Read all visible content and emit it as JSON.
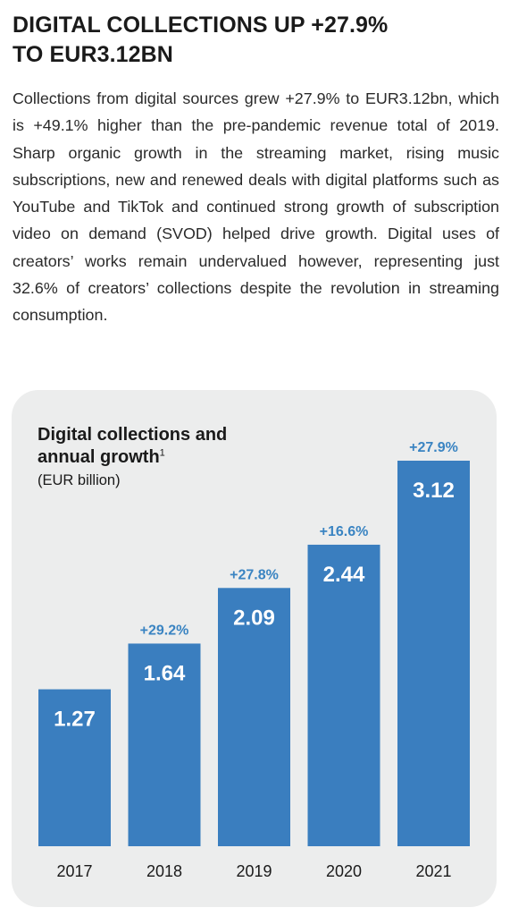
{
  "article": {
    "headline_line1": "DIGITAL COLLECTIONS UP +27.9%",
    "headline_line2": "TO EUR3.12BN",
    "body": "Collections from digital sources grew +27.9% to EUR3.12bn, which is +49.1% higher than the pre-pandemic revenue total of 2019. Sharp organic growth in the streaming market, rising music subscriptions, new and renewed deals with digital platforms such as YouTube and TikTok and continued strong growth of subscription video on demand (SVOD) helped drive growth. Digital uses of creators’ works remain undervalued however, representing just 32.6% of creators’ collections despite the revolution in streaming consumption."
  },
  "chart_data": {
    "type": "bar",
    "title_line1": "Digital collections and",
    "title_line2": "annual growth",
    "title_footnote": "1",
    "unit": "(EUR billion)",
    "categories": [
      "2017",
      "2018",
      "2019",
      "2020",
      "2021"
    ],
    "values": [
      1.27,
      1.64,
      2.09,
      2.44,
      3.12
    ],
    "value_labels": [
      "1.27",
      "1.64",
      "2.09",
      "2.44",
      "3.12"
    ],
    "growth_labels": [
      "",
      "+29.2%",
      "+27.8%",
      "+16.6%",
      "+27.9%"
    ],
    "ylim": [
      0,
      3.12
    ],
    "grid": false,
    "legend": "none",
    "colors": {
      "bar": "#3a7ebf",
      "growth_text": "#3a84c2",
      "value_text": "#ffffff",
      "card_background": "#eceded"
    }
  }
}
